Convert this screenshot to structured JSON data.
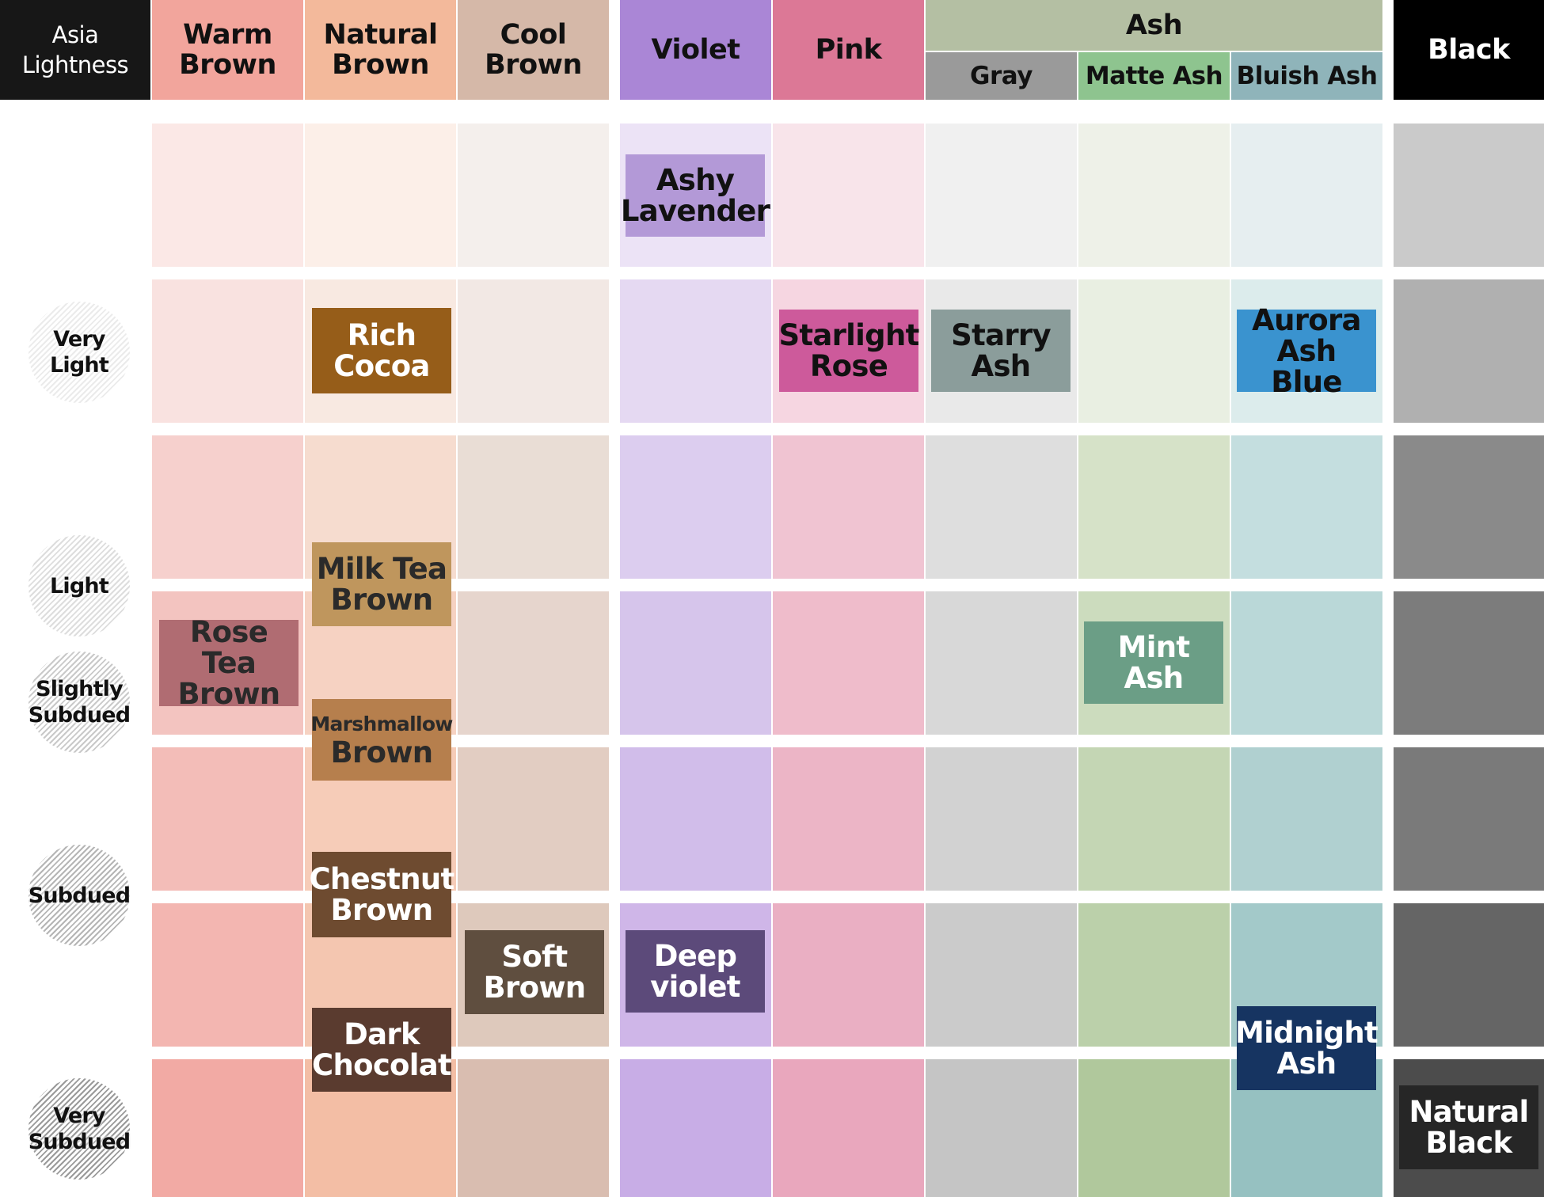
{
  "header": {
    "corner": "Asia\nLightness",
    "warm_brown": "Warm\nBrown",
    "natural_brown": "Natural\nBrown",
    "cool_brown": "Cool\nBrown",
    "violet": "Violet",
    "pink": "Pink",
    "ash": "Ash",
    "gray": "Gray",
    "matte_ash": "Matte Ash",
    "bluish_ash": "Bluish Ash",
    "black": "Black"
  },
  "header_colors": {
    "corner": "#171717",
    "warm_brown": "#f2a59c",
    "natural_brown": "#f3b99b",
    "cool_brown": "#d5b8a8",
    "violet": "#aa86d6",
    "pink": "#dc7896",
    "ash": "#b4bfa3",
    "gray": "#9a9a9a",
    "matte_ash": "#8ec48f",
    "bluish_ash": "#8fb4ba",
    "black": "#000000"
  },
  "lightness_levels": [
    {
      "key": "very_light",
      "label": "Very\nLight",
      "shade": 0.15
    },
    {
      "key": "light",
      "label": "Light",
      "shade": 0.25
    },
    {
      "key": "slightly_subdued",
      "label": "Slightly\nSubdued",
      "shade": 0.4
    },
    {
      "key": "subdued",
      "label": "Subdued",
      "shade": 0.55
    },
    {
      "key": "very_subdued",
      "label": "Very\nSubdued",
      "shade": 0.75
    }
  ],
  "grid": {
    "columns": [
      "warm_brown",
      "natural_brown",
      "cool_brown",
      "violet",
      "pink",
      "gray",
      "matte_ash",
      "bluish_ash",
      "black"
    ],
    "cell_colors": [
      [
        "#fbe8e6",
        "#fcefe8",
        "#f4efec",
        "#ece3f6",
        "#f8e4ea",
        "#f0f0f0",
        "#eef1e8",
        "#e6eef0",
        "#cacaca"
      ],
      [
        "#f9e2e0",
        "#f8e9e1",
        "#f2e8e4",
        "#e5d9f2",
        "#f6d6e1",
        "#e9e9e9",
        "#e9efe2",
        "#dcecec",
        "#b0b0b0"
      ],
      [
        "#f6d0cd",
        "#f6dccf",
        "#e9ddd5",
        "#dccdef",
        "#f0c4d2",
        "#dedede",
        "#d6e2c8",
        "#c4dedf",
        "#8a8a8a"
      ],
      [
        "#f3c4c0",
        "#f6d2c2",
        "#e6d5cd",
        "#d6c5eb",
        "#efbccb",
        "#d8d8d8",
        "#ccdcbe",
        "#bad8d8",
        "#7c7c7c"
      ],
      [
        "#f3bdb8",
        "#f6ccb8",
        "#e2cdc2",
        "#d1bdea",
        "#ecb5c6",
        "#d2d2d2",
        "#c4d6b4",
        "#b0d0d0",
        "#7a7a7a"
      ],
      [
        "#f3b6b1",
        "#f4c6b0",
        "#dec9bc",
        "#cfb6e8",
        "#eaafc3",
        "#cbcbcb",
        "#bbd0aa",
        "#a3c9c9",
        "#656565"
      ],
      [
        "#f2aaa4",
        "#f3bea5",
        "#d9bdb0",
        "#c8ade6",
        "#e9a7bd",
        "#c5c5c5",
        "#b0c89c",
        "#96c1c1",
        "#4c4c4c"
      ]
    ]
  },
  "chips": [
    {
      "key": "ashy_lavender",
      "label": "Ashy\nLavender",
      "color": "#b399d7",
      "text_color": "#111111"
    },
    {
      "key": "rich_cocoa",
      "label": "Rich\nCocoa",
      "color": "#965d19",
      "text_color": "#ffffff"
    },
    {
      "key": "starlight_rose",
      "label": "Starlight\nRose",
      "color": "#cd5a9b",
      "text_color": "#111111"
    },
    {
      "key": "starry_ash",
      "label": "Starry\nAsh",
      "color": "#8b9d9b",
      "text_color": "#111111"
    },
    {
      "key": "aurora_ash_blue",
      "label": "Aurora\nAsh Blue",
      "color": "#3a93cf",
      "text_color": "#111111"
    },
    {
      "key": "milk_tea_brown",
      "label": "Milk Tea\nBrown",
      "color": "#bf965d",
      "text_color": "#2a2a2a"
    },
    {
      "key": "rose_tea_brown",
      "label": "Rose Tea\nBrown",
      "color": "#b06c72",
      "text_color": "#2a2a2a"
    },
    {
      "key": "mint_ash",
      "label": "Mint\nAsh",
      "color": "#6b9e86",
      "text_color": "#ffffff"
    },
    {
      "key": "marshmallow_brown_top",
      "label": "Marshmallow",
      "color": "#b67f4d",
      "text_color": "#2a2a2a"
    },
    {
      "key": "marshmallow_brown_bottom",
      "label": "Brown",
      "color": "#b67f4d",
      "text_color": "#2a2a2a"
    },
    {
      "key": "chestnut_brown",
      "label": "Chestnut\nBrown",
      "color": "#6e4b30",
      "text_color": "#ffffff"
    },
    {
      "key": "soft_brown",
      "label": "Soft\nBrown",
      "color": "#5f4e3f",
      "text_color": "#ffffff"
    },
    {
      "key": "deep_violet",
      "label": "Deep\nviolet",
      "color": "#5c4a7a",
      "text_color": "#ffffff"
    },
    {
      "key": "dark_chocolat",
      "label": "Dark\nChocolat",
      "color": "#5a3b2f",
      "text_color": "#ffffff"
    },
    {
      "key": "midnight_ash",
      "label": "Midnight\nAsh",
      "color": "#163461",
      "text_color": "#ffffff"
    },
    {
      "key": "natural_black",
      "label": "Natural\nBlack",
      "color": "#262626",
      "text_color": "#ffffff"
    }
  ]
}
